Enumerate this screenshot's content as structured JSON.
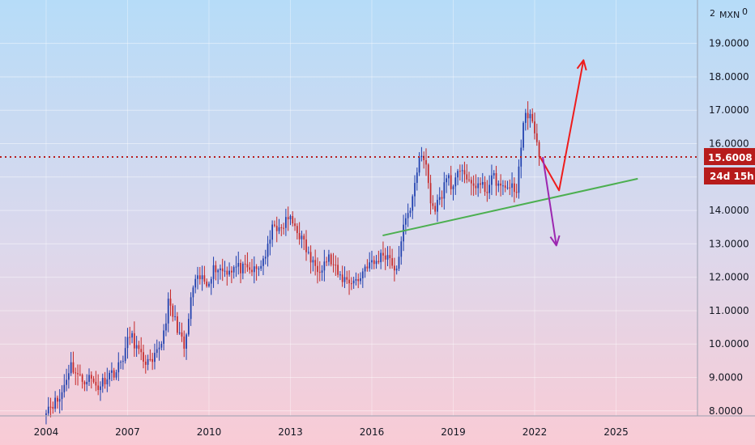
{
  "axis_corner": {
    "left": "2",
    "currency": "MXN",
    "right": "0"
  },
  "price_badge": {
    "value": "15.6008",
    "countdown": "24d 15h",
    "color": "#b71c1c"
  },
  "colors": {
    "up": "#1e3fae",
    "down": "#c62828",
    "support_line": "#4caf50",
    "bull_arrow": "#ee1c1c",
    "bear_arrow": "#9c27b0",
    "level_line": "#b71c1c"
  },
  "chart_data": {
    "type": "candlestick",
    "x_range": [
      2002.3,
      2028.0
    ],
    "y_range": [
      7.85,
      20.3
    ],
    "x_ticks": [
      {
        "value": 2004,
        "label": "2004"
      },
      {
        "value": 2007,
        "label": "2007"
      },
      {
        "value": 2010,
        "label": "2010"
      },
      {
        "value": 2013,
        "label": "2013"
      },
      {
        "value": 2016,
        "label": "2016"
      },
      {
        "value": 2019,
        "label": "2019"
      },
      {
        "value": 2022,
        "label": "2022"
      },
      {
        "value": 2025,
        "label": "2025"
      }
    ],
    "y_ticks": [
      {
        "value": 8,
        "label": "8.0000"
      },
      {
        "value": 9,
        "label": "9.0000"
      },
      {
        "value": 10,
        "label": "10.0000"
      },
      {
        "value": 11,
        "label": "11.0000"
      },
      {
        "value": 12,
        "label": "12.0000"
      },
      {
        "value": 13,
        "label": "13.0000"
      },
      {
        "value": 14,
        "label": "14.0000"
      },
      {
        "value": 15,
        "label": "15.0000"
      },
      {
        "value": 16,
        "label": "16.0000"
      },
      {
        "value": 17,
        "label": "17.0000"
      },
      {
        "value": 18,
        "label": "18.0000"
      },
      {
        "value": 19,
        "label": "19.0000"
      }
    ],
    "price_path": [
      [
        2004.0,
        8.1
      ],
      [
        2004.5,
        8.35
      ],
      [
        2004.9,
        9.4
      ],
      [
        2005.3,
        8.9
      ],
      [
        2005.6,
        9.0
      ],
      [
        2005.9,
        8.7
      ],
      [
        2006.3,
        9.1
      ],
      [
        2006.6,
        9.2
      ],
      [
        2006.8,
        9.55
      ],
      [
        2007.1,
        10.3
      ],
      [
        2007.5,
        9.6
      ],
      [
        2007.9,
        9.35
      ],
      [
        2008.3,
        10.2
      ],
      [
        2008.5,
        11.2
      ],
      [
        2008.8,
        10.6
      ],
      [
        2009.1,
        9.8
      ],
      [
        2009.4,
        11.7
      ],
      [
        2009.7,
        12.0
      ],
      [
        2009.9,
        11.8
      ],
      [
        2010.2,
        12.3
      ],
      [
        2010.6,
        12.2
      ],
      [
        2011.0,
        12.3
      ],
      [
        2011.4,
        12.2
      ],
      [
        2011.8,
        12.2
      ],
      [
        2012.2,
        12.9
      ],
      [
        2012.4,
        13.7
      ],
      [
        2012.6,
        13.3
      ],
      [
        2012.9,
        13.8
      ],
      [
        2013.2,
        13.5
      ],
      [
        2013.5,
        13.0
      ],
      [
        2013.8,
        12.4
      ],
      [
        2014.1,
        12.3
      ],
      [
        2014.4,
        12.6
      ],
      [
        2014.8,
        12.0
      ],
      [
        2015.2,
        11.9
      ],
      [
        2015.5,
        11.9
      ],
      [
        2015.8,
        12.4
      ],
      [
        2016.1,
        12.4
      ],
      [
        2016.4,
        12.7
      ],
      [
        2016.7,
        12.6
      ],
      [
        2016.9,
        12.0
      ],
      [
        2017.1,
        13.3
      ],
      [
        2017.4,
        14.0
      ],
      [
        2017.6,
        15.0
      ],
      [
        2017.8,
        15.6
      ],
      [
        2018.0,
        15.4
      ],
      [
        2018.2,
        14.0
      ],
      [
        2018.5,
        14.3
      ],
      [
        2018.8,
        15.1
      ],
      [
        2019.0,
        14.6
      ],
      [
        2019.3,
        15.4
      ],
      [
        2019.6,
        14.7
      ],
      [
        2019.9,
        14.8
      ],
      [
        2020.2,
        14.6
      ],
      [
        2020.5,
        15.0
      ],
      [
        2020.8,
        14.6
      ],
      [
        2021.1,
        14.8
      ],
      [
        2021.3,
        14.4
      ],
      [
        2021.6,
        16.7
      ],
      [
        2021.8,
        17.0
      ],
      [
        2022.0,
        16.2
      ],
      [
        2022.2,
        15.6
      ]
    ],
    "current_price": 15.6008,
    "support_line": {
      "from": [
        2016.4,
        13.25
      ],
      "to": [
        2025.8,
        14.95
      ]
    },
    "bullish_projection": [
      [
        2022.2,
        15.6
      ],
      [
        2022.9,
        14.6
      ],
      [
        2023.8,
        18.5
      ]
    ],
    "bearish_projection": [
      [
        2022.3,
        15.6
      ],
      [
        2022.8,
        12.95
      ]
    ]
  }
}
